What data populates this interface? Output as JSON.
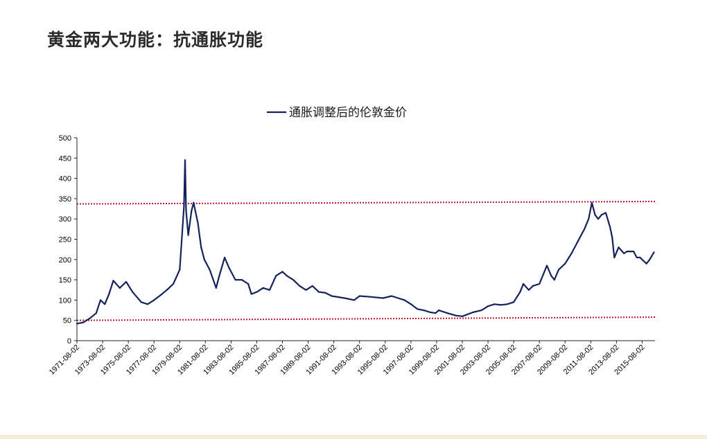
{
  "page": {
    "title": "黄金两大功能：抗通胀功能"
  },
  "colors": {
    "series": "#14215a",
    "reference_lines": "#b3172c",
    "axis": "#222222",
    "bottom_band": "#f6ecd7"
  },
  "chart_data": {
    "type": "line",
    "title": "",
    "xlabel": "",
    "ylabel": "",
    "legend": {
      "position": "top-center",
      "entries": [
        "通胀调整后的伦敦金价"
      ]
    },
    "grid": false,
    "ylim": [
      0,
      500
    ],
    "yticks": [
      0,
      50,
      100,
      150,
      200,
      250,
      300,
      350,
      400,
      450,
      500
    ],
    "xlim": [
      "1971-08",
      "2016-08"
    ],
    "xticks": [
      "1971-08-02",
      "1973-08-02",
      "1975-08-02",
      "1977-08-02",
      "1979-08-02",
      "1981-08-02",
      "1983-08-02",
      "1985-08-02",
      "1987-08-02",
      "1989-08-02",
      "1991-08-02",
      "1993-08-02",
      "1995-08-02",
      "1997-08-02",
      "1999-08-02",
      "2001-08-02",
      "2003-08-02",
      "2005-08-02",
      "2007-08-02",
      "2009-08-02",
      "2011-08-02",
      "2013-08-02",
      "2015-08-02"
    ],
    "series": [
      {
        "name": "通胀调整后的伦敦金价",
        "x": [
          "1971-08",
          "1972-02",
          "1972-08",
          "1973-02",
          "1973-06",
          "1973-10",
          "1974-02",
          "1974-06",
          "1974-12",
          "1975-06",
          "1975-12",
          "1976-08",
          "1977-02",
          "1977-08",
          "1978-02",
          "1978-08",
          "1979-02",
          "1979-08",
          "1979-12",
          "1980-01",
          "1980-02",
          "1980-04",
          "1980-07",
          "1980-09",
          "1981-01",
          "1981-04",
          "1981-07",
          "1981-12",
          "1982-06",
          "1982-09",
          "1983-02",
          "1983-06",
          "1983-12",
          "1984-06",
          "1984-12",
          "1985-03",
          "1985-08",
          "1986-02",
          "1986-08",
          "1987-02",
          "1987-08",
          "1987-12",
          "1988-06",
          "1988-12",
          "1989-06",
          "1989-12",
          "1990-06",
          "1990-12",
          "1991-06",
          "1992-06",
          "1993-03",
          "1993-08",
          "1994-06",
          "1995-06",
          "1996-02",
          "1996-08",
          "1997-02",
          "1997-08",
          "1998-02",
          "1998-08",
          "1999-02",
          "1999-07",
          "1999-10",
          "2000-06",
          "2001-02",
          "2001-08",
          "2002-06",
          "2003-02",
          "2003-08",
          "2004-02",
          "2004-08",
          "2005-02",
          "2005-08",
          "2006-02",
          "2006-05",
          "2006-10",
          "2007-02",
          "2007-08",
          "2008-03",
          "2008-07",
          "2008-10",
          "2009-02",
          "2009-08",
          "2010-02",
          "2010-08",
          "2011-02",
          "2011-06",
          "2011-09",
          "2011-12",
          "2012-03",
          "2012-06",
          "2012-10",
          "2013-02",
          "2013-04",
          "2013-06",
          "2013-10",
          "2014-03",
          "2014-06",
          "2014-12",
          "2015-03",
          "2015-06",
          "2015-12",
          "2016-03",
          "2016-07"
        ],
        "values": [
          42,
          45,
          55,
          68,
          100,
          90,
          115,
          148,
          130,
          145,
          120,
          95,
          90,
          100,
          112,
          125,
          140,
          175,
          330,
          445,
          320,
          260,
          320,
          340,
          290,
          230,
          200,
          175,
          130,
          160,
          205,
          180,
          150,
          150,
          140,
          115,
          120,
          130,
          125,
          160,
          170,
          160,
          150,
          135,
          125,
          135,
          120,
          118,
          110,
          105,
          100,
          110,
          108,
          105,
          110,
          105,
          100,
          90,
          78,
          75,
          70,
          68,
          75,
          68,
          62,
          60,
          70,
          75,
          85,
          90,
          88,
          90,
          95,
          120,
          140,
          125,
          135,
          140,
          185,
          160,
          150,
          175,
          190,
          215,
          245,
          275,
          300,
          340,
          310,
          300,
          310,
          315,
          280,
          255,
          205,
          230,
          215,
          220,
          220,
          205,
          205,
          190,
          200,
          218
        ]
      }
    ],
    "reference_lines": [
      {
        "from": [
          "1971-08",
          337
        ],
        "to": [
          "2016-08",
          343
        ],
        "style": "dotted"
      },
      {
        "from": [
          "1971-08",
          50
        ],
        "to": [
          "2016-08",
          58
        ],
        "style": "dotted"
      }
    ]
  }
}
